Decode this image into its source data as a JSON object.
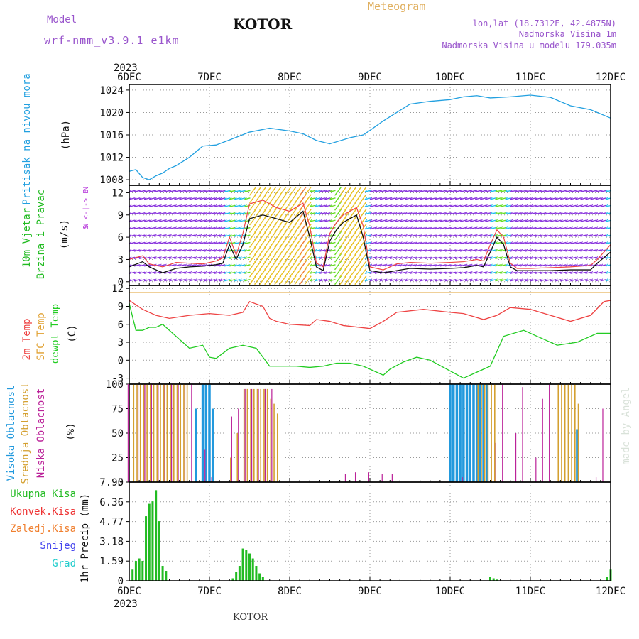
{
  "header": {
    "model_label": "Model",
    "model_name": "wrf-nmm_v3.9.1 e1km",
    "station": "KOTOR",
    "title": "Meteogram",
    "lonlat": "lon,lat (18.7312E, 42.4875N)",
    "elevation": "Nadmorska Visina 1m",
    "model_elevation": "Nadmorska Visina u modelu 179.035m",
    "footer_station": "KOTOR",
    "credit": "made by Angel"
  },
  "time_axis": {
    "year_top": "2023",
    "year_bottom": "2023",
    "labels": [
      "6DEC",
      "7DEC",
      "8DEC",
      "9DEC",
      "10DEC",
      "11DEC",
      "12DEC"
    ]
  },
  "colors": {
    "pressure": "#22a0e0",
    "wind_label": "#22bb22",
    "wind_dir_label": "#bb44dd",
    "temp2m": "#ee4444",
    "sfc_temp": "#e0a030",
    "dewpt": "#22cc22",
    "cloud_high": "#2299dd",
    "cloud_mid": "#d4a030",
    "cloud_low": "#bb2299",
    "precip_total": "#22bb22",
    "precip_conv": "#ee3333",
    "precip_frozen": "#f08030",
    "precip_snow": "#4444ee",
    "precip_hail": "#22cccc",
    "title_accent": "#e0b060",
    "purple_text": "#9955cc"
  },
  "chart_data": [
    {
      "type": "line",
      "id": "pressure",
      "ylabel_main": "Pritisak na nivou mora",
      "ylabel_unit": "(hPa)",
      "yticks": [
        "1008",
        "1012",
        "1016",
        "1020",
        "1024"
      ],
      "ylim": [
        1007,
        1025
      ],
      "xlim": [
        0,
        144
      ],
      "grid": true,
      "series": [
        {
          "x": [
            0,
            2,
            4,
            6,
            8,
            10,
            12,
            14,
            18,
            22,
            26,
            30,
            36,
            42,
            48,
            52,
            56,
            60,
            66,
            70,
            72,
            76,
            80,
            84,
            90,
            96,
            100,
            104,
            108,
            114,
            120,
            126,
            132,
            138,
            144
          ],
          "y": [
            1009.5,
            1009.8,
            1008.4,
            1008.0,
            1008.7,
            1009.2,
            1010.0,
            1010.5,
            1012.0,
            1014.0,
            1014.2,
            1015.1,
            1016.5,
            1017.2,
            1016.7,
            1016.2,
            1015.0,
            1014.4,
            1015.5,
            1016.0,
            1016.8,
            1018.5,
            1020.0,
            1021.5,
            1022.0,
            1022.3,
            1022.8,
            1023.0,
            1022.6,
            1022.8,
            1023.1,
            1022.7,
            1021.2,
            1020.5,
            1019.0
          ]
        }
      ]
    },
    {
      "type": "line",
      "id": "wind",
      "ylabel_main": "10m Vjetar",
      "ylabel_sub": "Brzina i Pravac",
      "ylabel_unit": "(m/s)",
      "direction_legend": [
        "N",
        "W <-|-> E",
        "S"
      ],
      "yticks": [
        "0",
        "3",
        "6",
        "9",
        "12"
      ],
      "ylim": [
        -0.5,
        13
      ],
      "xlim": [
        0,
        144
      ],
      "grid": true,
      "series": [
        {
          "name": "speed",
          "x": [
            0,
            4,
            6,
            10,
            14,
            18,
            22,
            26,
            28,
            30,
            32,
            34,
            36,
            40,
            44,
            48,
            52,
            54,
            56,
            58,
            60,
            62,
            64,
            66,
            68,
            70,
            72,
            76,
            80,
            84,
            90,
            96,
            100,
            104,
            106,
            108,
            110,
            112,
            114,
            116,
            120,
            126,
            132,
            138,
            140,
            144
          ],
          "y": [
            2.0,
            2.7,
            2.0,
            1.2,
            1.8,
            2.0,
            2.1,
            2.3,
            2.5,
            5.0,
            3.0,
            5.0,
            8.5,
            9.0,
            8.5,
            8.0,
            9.5,
            6.0,
            2.0,
            1.5,
            5.5,
            7.0,
            8.0,
            8.5,
            9.0,
            6.0,
            1.5,
            1.2,
            1.5,
            1.8,
            1.7,
            1.8,
            1.9,
            2.2,
            2.0,
            4.0,
            6.0,
            5.0,
            2.0,
            1.5,
            1.5,
            1.5,
            1.6,
            1.6,
            2.5,
            4.0
          ]
        },
        {
          "name": "gust",
          "x": [
            0,
            4,
            6,
            10,
            14,
            18,
            22,
            26,
            28,
            30,
            32,
            34,
            36,
            40,
            44,
            48,
            52,
            54,
            56,
            58,
            60,
            62,
            64,
            66,
            68,
            70,
            72,
            76,
            80,
            84,
            90,
            96,
            100,
            104,
            106,
            108,
            110,
            112,
            114,
            116,
            120,
            126,
            132,
            138,
            140,
            144
          ],
          "y": [
            3.0,
            3.5,
            2.4,
            2.0,
            2.6,
            2.5,
            2.4,
            2.8,
            3.2,
            6.0,
            3.6,
            6.5,
            10.5,
            11.0,
            10.0,
            9.5,
            10.6,
            7.5,
            2.5,
            2.0,
            6.5,
            8.0,
            9.0,
            9.5,
            10.0,
            7.5,
            2.0,
            1.6,
            2.4,
            2.6,
            2.5,
            2.6,
            2.7,
            3.0,
            2.8,
            5.0,
            7.0,
            6.0,
            2.5,
            1.8,
            1.8,
            1.9,
            2.0,
            2.2,
            3.0,
            5.0
          ]
        }
      ]
    },
    {
      "type": "line",
      "id": "temperature",
      "ylabel_labels": [
        "2m Temp",
        "SFC Temp",
        "dewpt Temp"
      ],
      "ylabel_unit": "(C)",
      "yticks": [
        "-3",
        "0",
        "3",
        "6",
        "9",
        "12"
      ],
      "ylim": [
        -4,
        12.5
      ],
      "xlim": [
        0,
        144
      ],
      "grid": true,
      "series": [
        {
          "name": "sfc",
          "x": [
            0,
            144
          ],
          "y": [
            11.3,
            11.3
          ]
        },
        {
          "name": "t2m",
          "x": [
            0,
            4,
            8,
            12,
            18,
            24,
            30,
            34,
            36,
            40,
            42,
            44,
            48,
            54,
            56,
            60,
            64,
            72,
            76,
            80,
            88,
            96,
            100,
            106,
            110,
            114,
            120,
            126,
            132,
            138,
            142,
            144
          ],
          "y": [
            10.0,
            8.5,
            7.5,
            7.0,
            7.5,
            7.8,
            7.5,
            8.0,
            9.8,
            9.0,
            7.0,
            6.5,
            6.0,
            5.8,
            6.8,
            6.5,
            5.8,
            5.3,
            6.5,
            8.0,
            8.5,
            8.0,
            7.8,
            6.8,
            7.5,
            8.8,
            8.5,
            7.5,
            6.5,
            7.5,
            9.8,
            10.0
          ]
        },
        {
          "name": "dewpt",
          "x": [
            0,
            2,
            4,
            6,
            8,
            10,
            14,
            18,
            22,
            24,
            26,
            30,
            34,
            38,
            42,
            46,
            50,
            54,
            58,
            62,
            66,
            70,
            74,
            76,
            78,
            82,
            86,
            90,
            96,
            100,
            104,
            108,
            112,
            118,
            124,
            128,
            134,
            140,
            144
          ],
          "y": [
            9.5,
            5.0,
            5.0,
            5.5,
            5.5,
            6.0,
            4.0,
            2.0,
            2.5,
            0.5,
            0.3,
            2.0,
            2.5,
            2.0,
            -1.0,
            -1.0,
            -1.0,
            -1.2,
            -1.0,
            -0.5,
            -0.5,
            -1.0,
            -2.0,
            -2.5,
            -1.5,
            -0.3,
            0.5,
            0.0,
            -1.8,
            -3.0,
            -2.0,
            -1.0,
            4.0,
            5.0,
            3.5,
            2.5,
            3.0,
            4.5,
            4.5
          ]
        }
      ]
    },
    {
      "type": "bar",
      "id": "clouds",
      "ylabel_labels": [
        "Visoka Oblacnost",
        "Srednja Oblacnost",
        "Niska Oblacnost"
      ],
      "ylabel_unit": "(%)",
      "yticks": [
        "0",
        "25",
        "50",
        "75",
        "100"
      ],
      "ylim": [
        0,
        100
      ],
      "xlim": [
        0,
        144
      ],
      "grid": true,
      "series": [
        {
          "name": "high",
          "x": [
            20,
            21,
            22,
            23,
            24,
            25,
            96,
            97,
            98,
            99,
            100,
            101,
            102,
            103,
            104,
            105,
            106,
            107,
            134,
            135
          ],
          "values": [
            75,
            0,
            100,
            100,
            100,
            75,
            100,
            100,
            100,
            100,
            100,
            100,
            100,
            100,
            100,
            100,
            100,
            100,
            54,
            0
          ]
        },
        {
          "name": "mid",
          "x": [
            1,
            2,
            3,
            4,
            5,
            6,
            7,
            8,
            9,
            10,
            11,
            12,
            13,
            14,
            15,
            16,
            17,
            30,
            32,
            34,
            35,
            36,
            37,
            38,
            39,
            40,
            41,
            42,
            43,
            44,
            104,
            105,
            106,
            107,
            108,
            109,
            128,
            129,
            130,
            131,
            132,
            133,
            134
          ],
          "values": [
            100,
            100,
            100,
            100,
            100,
            100,
            100,
            100,
            100,
            100,
            100,
            100,
            100,
            100,
            100,
            100,
            100,
            25,
            50,
            95,
            95,
            95,
            95,
            95,
            95,
            95,
            95,
            85,
            80,
            70,
            100,
            100,
            100,
            100,
            100,
            100,
            100,
            100,
            100,
            100,
            100,
            100,
            80
          ]
        },
        {
          "name": "low",
          "x": [
            0,
            3,
            5,
            7,
            9,
            11,
            13,
            15,
            17,
            19,
            23,
            25,
            31,
            33,
            35,
            37,
            39,
            41,
            43,
            65,
            68,
            72,
            76,
            79,
            100,
            110,
            112,
            116,
            118,
            122,
            124,
            126,
            140,
            142
          ],
          "values": [
            100,
            100,
            100,
            100,
            100,
            100,
            100,
            100,
            100,
            100,
            33,
            5,
            67,
            75,
            95,
            95,
            95,
            95,
            95,
            8,
            10,
            10,
            8,
            8,
            5,
            40,
            100,
            50,
            97,
            25,
            85,
            100,
            5,
            75
          ]
        }
      ]
    },
    {
      "type": "bar",
      "id": "precip",
      "ylabel_main": "1hr Precip (mm)",
      "legend": [
        "Ukupna Kisa",
        "Konvek.Kisa",
        "Zaledj.Kisa",
        "Snijeg",
        "Grad"
      ],
      "yticks": [
        "0",
        "1.59",
        "3.18",
        "4.77",
        "6.36",
        "7.95"
      ],
      "ylim": [
        0,
        7.95
      ],
      "xlim": [
        0,
        144
      ],
      "grid": true,
      "series": [
        {
          "name": "total",
          "x": [
            1,
            2,
            3,
            4,
            5,
            6,
            7,
            8,
            9,
            10,
            11,
            31,
            32,
            33,
            34,
            35,
            36,
            37,
            38,
            39,
            40,
            108,
            109,
            110,
            143,
            144
          ],
          "values": [
            0.9,
            1.6,
            1.8,
            1.6,
            5.2,
            6.2,
            6.4,
            7.3,
            4.8,
            1.2,
            0.8,
            0.2,
            0.7,
            1.2,
            2.6,
            2.5,
            2.2,
            1.8,
            1.2,
            0.6,
            0.3,
            0.3,
            0.2,
            0.1,
            0.3,
            0.9
          ]
        }
      ]
    }
  ]
}
